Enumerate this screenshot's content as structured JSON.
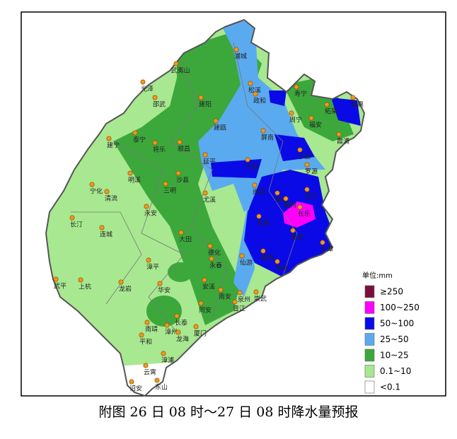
{
  "caption": "附图 26 日 08 时～27 日 08 时降水量预报",
  "legend": {
    "unit": "单位:mm",
    "items": [
      {
        "label": "≥250",
        "color": "#7a1040"
      },
      {
        "label": "100~250",
        "color": "#ff00ff"
      },
      {
        "label": "50~100",
        "color": "#0a0ae6"
      },
      {
        "label": "25~50",
        "color": "#5aaaf0"
      },
      {
        "label": "10~25",
        "color": "#3ca83c"
      },
      {
        "label": "0.1~10",
        "color": "#a8e890"
      },
      {
        "label": "<0.1",
        "color": "#ffffff"
      }
    ]
  },
  "cities": [
    "浦城",
    "武夷山",
    "光泽",
    "松溪",
    "政和",
    "寿宁",
    "柘荣",
    "福鼎",
    "邵武",
    "建阳",
    "周宁",
    "福安",
    "霞浦",
    "泰宁",
    "建宁",
    "将乐",
    "顺昌",
    "建瓯",
    "屏南",
    "宁德",
    "古田",
    "罗源",
    "延平",
    "明溪",
    "沙县",
    "三明",
    "宁化",
    "清流",
    "尤溪",
    "闽清",
    "闽侯",
    "连江",
    "福州",
    "长乐",
    "永安",
    "长汀",
    "连城",
    "大田",
    "永泰",
    "福清",
    "平潭",
    "德化",
    "永春",
    "仙游",
    "莆田",
    "秀屿",
    "漳平",
    "武平",
    "上杭",
    "龙岩",
    "安溪",
    "华安",
    "南安",
    "泉州",
    "晋江",
    "崇武",
    "同安",
    "长泰",
    "南靖",
    "漳州",
    "龙海",
    "厦门",
    "平和",
    "漳浦",
    "云霄",
    "诏安",
    "东山"
  ]
}
